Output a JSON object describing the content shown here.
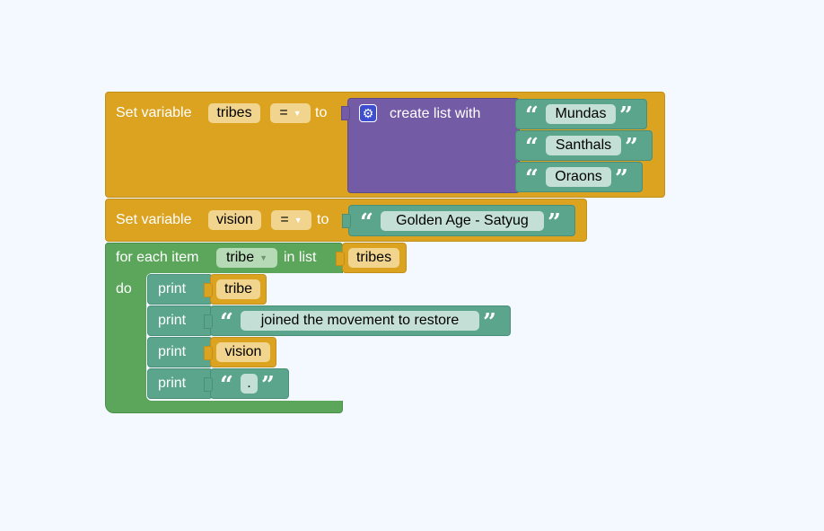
{
  "blocks": {
    "set_tribes": {
      "prefix": "Set variable",
      "variable": "tribes",
      "operator": "=",
      "to_label": "to",
      "list_label": "create list with",
      "items": [
        "Mundas",
        "Santhals",
        "Oraons"
      ]
    },
    "set_vision": {
      "prefix": "Set variable",
      "variable": "vision",
      "operator": "=",
      "to_label": "to",
      "value": "Golden Age - Satyug"
    },
    "for_each": {
      "label": "for each item",
      "variable": "tribe",
      "in_list_label": "in list",
      "list": "tribes",
      "do_label": "do",
      "print_label": "print",
      "statements": {
        "p1_var": "tribe",
        "p2_text": "joined the movement to restore",
        "p3_var": "vision",
        "p4_text": "."
      }
    }
  },
  "icons": {
    "open_quote": "“",
    "close_quote": "”",
    "gear": "⚙",
    "dropdown": "▼"
  },
  "colors": {
    "workspace": "#f3f9ff",
    "variables": "#dca321",
    "lists": "#745ba6",
    "text": "#5ba58c",
    "loops": "#5ca65c"
  }
}
